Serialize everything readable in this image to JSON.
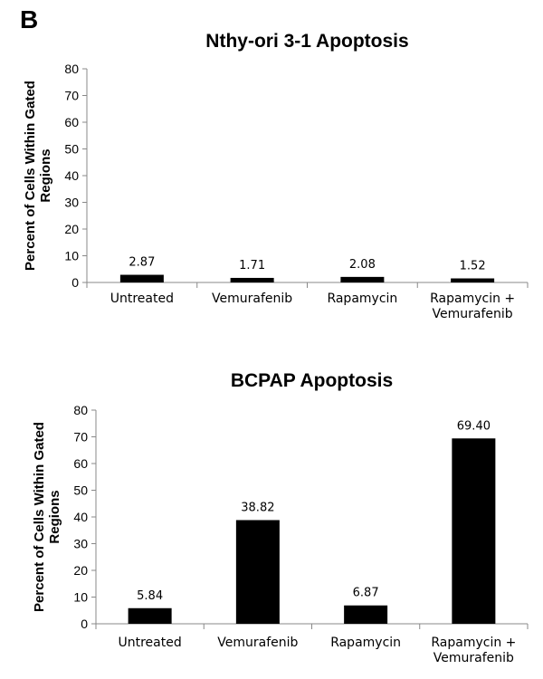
{
  "panel_label": "B",
  "chart_data": [
    {
      "type": "bar",
      "title": "Nthy-ori 3-1 Apoptosis",
      "ylabel_lines": [
        "Percent of Cells Within Gated",
        "Regions"
      ],
      "xlabel": "",
      "ylim": [
        0,
        80
      ],
      "yticks": [
        "0",
        "10",
        "20",
        "30",
        "40",
        "50",
        "60",
        "70",
        "80"
      ],
      "categories": [
        [
          "Untreated"
        ],
        [
          "Vemurafenib"
        ],
        [
          "Rapamycin"
        ],
        [
          "Rapamycin +",
          "Vemurafenib"
        ]
      ],
      "values": [
        2.87,
        1.71,
        2.08,
        1.52
      ],
      "data_labels": [
        "2.87",
        "1.71",
        "2.08",
        "1.52"
      ],
      "bar_color": "#000000",
      "grid": false
    },
    {
      "type": "bar",
      "title": "BCPAP Apoptosis",
      "ylabel_lines": [
        "Percent of Cells Within Gated",
        "Regions"
      ],
      "xlabel": "",
      "ylim": [
        0,
        80
      ],
      "yticks": [
        "0",
        "10",
        "20",
        "30",
        "40",
        "50",
        "60",
        "70",
        "80"
      ],
      "categories": [
        [
          "Untreated"
        ],
        [
          "Vemurafenib"
        ],
        [
          "Rapamycin"
        ],
        [
          "Rapamycin +",
          "Vemurafenib"
        ]
      ],
      "values": [
        5.84,
        38.82,
        6.87,
        69.4
      ],
      "data_labels": [
        "5.84",
        "38.82",
        "6.87",
        "69.40"
      ],
      "bar_color": "#000000",
      "grid": false
    }
  ]
}
